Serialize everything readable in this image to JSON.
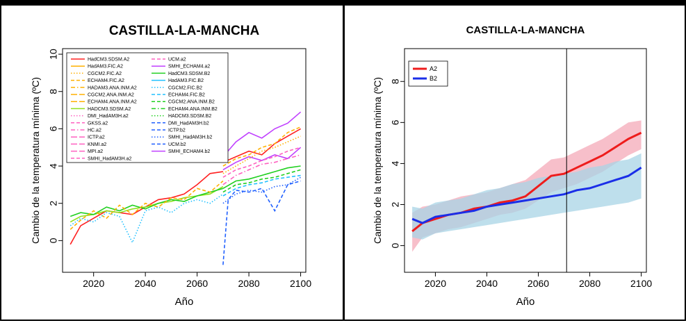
{
  "chart_data": [
    {
      "type": "line",
      "title": "CASTILLA-LA-MANCHA",
      "xlabel": "Año",
      "ylabel": "Cambio de la temperatura mínima (ºC)",
      "xlim": [
        2008,
        2102
      ],
      "ylim": [
        -1.7,
        10.3
      ],
      "xticks": [
        2020,
        2040,
        2060,
        2080,
        2100
      ],
      "yticks": [
        0,
        2,
        4,
        6,
        8,
        10
      ],
      "grid": false,
      "legend_position": "top-left",
      "legend": [
        {
          "label": "HadCM3.SDSM.A2",
          "color": "#ff2020",
          "dash": "solid"
        },
        {
          "label": "HadAM3.FIC.A2",
          "color": "#ffb000",
          "dash": "solid"
        },
        {
          "label": "CGCM2.FIC.A2",
          "color": "#ffb000",
          "dash": "dotted"
        },
        {
          "label": "ECHAM4.FIC.A2",
          "color": "#ffb000",
          "dash": "dashed"
        },
        {
          "label": "HADAM3.ANA.INM.A2",
          "color": "#ffb000",
          "dash": "dashdot"
        },
        {
          "label": "CGCM2.ANA.INM.A2",
          "color": "#ffb000",
          "dash": "longdash"
        },
        {
          "label": "ECHAM4.ANA.INM.A2",
          "color": "#ffb000",
          "dash": "longdash"
        },
        {
          "label": "HADCM3.SDSM.A2",
          "color": "#90e020",
          "dash": "solid"
        },
        {
          "label": "DMI_HadAM3H.a2",
          "color": "#ff60c0",
          "dash": "dotted"
        },
        {
          "label": "GKSS.a2",
          "color": "#ff60c0",
          "dash": "dashed"
        },
        {
          "label": "HC.a2",
          "color": "#ff60c0",
          "dash": "dashdot"
        },
        {
          "label": "ICTP.a2",
          "color": "#ff60c0",
          "dash": "longdash"
        },
        {
          "label": "KNMI.a2",
          "color": "#ff60c0",
          "dash": "longdash"
        },
        {
          "label": "MPI.a2",
          "color": "#ff60c0",
          "dash": "longdash"
        },
        {
          "label": "SMHI_HadAM3H.a2",
          "color": "#ff60c0",
          "dash": "dashed"
        },
        {
          "label": "UCM.a2",
          "color": "#ff60c0",
          "dash": "dashed"
        },
        {
          "label": "SMHI_ECHAM4.a2",
          "color": "#c040ff",
          "dash": "solid"
        },
        {
          "label": "HadCM3.SDSM.B2",
          "color": "#20d020",
          "dash": "solid"
        },
        {
          "label": "HadAM3.FIC.B2",
          "color": "#20c0ff",
          "dash": "solid"
        },
        {
          "label": "CGCM2.FIC.B2",
          "color": "#20c0ff",
          "dash": "dotted"
        },
        {
          "label": "ECHAM4.FIC.B2",
          "color": "#20c0ff",
          "dash": "dashed"
        },
        {
          "label": "CGCM2.ANA.INM.B2",
          "color": "#20d020",
          "dash": "dashed"
        },
        {
          "label": "ECHAM4.ANA.INM.B2",
          "color": "#20d020",
          "dash": "dashdot"
        },
        {
          "label": "HADCM3.SDSM.B2",
          "color": "#20d020",
          "dash": "dotted"
        },
        {
          "label": "DMI_HadAM3H.b2",
          "color": "#2060ff",
          "dash": "dashed"
        },
        {
          "label": "ICTP.b2",
          "color": "#2060ff",
          "dash": "dashed"
        },
        {
          "label": "SMHI_HadAM3H.b2",
          "color": "#2060ff",
          "dash": "dotted"
        },
        {
          "label": "UCM.b2",
          "color": "#2060ff",
          "dash": "dashed"
        },
        {
          "label": "SMHI_ECHAM4.b2",
          "color": "#c040ff",
          "dash": "solid"
        }
      ],
      "series": [
        {
          "color": "#ff2020",
          "dash": "solid",
          "x": [
            2011,
            2015,
            2020,
            2025,
            2030,
            2035,
            2040,
            2045,
            2050,
            2055,
            2060,
            2065,
            2070
          ],
          "y": [
            -0.2,
            0.8,
            1.2,
            1.6,
            1.5,
            1.4,
            1.8,
            2.2,
            2.3,
            2.5,
            3.0,
            3.6,
            3.7
          ]
        },
        {
          "color": "#90e020",
          "dash": "solid",
          "x": [
            2011,
            2015,
            2020,
            2025,
            2030,
            2035,
            2040,
            2045,
            2050,
            2055,
            2060,
            2065,
            2070
          ],
          "y": [
            1.0,
            1.3,
            1.4,
            1.6,
            1.5,
            1.7,
            1.8,
            2.0,
            2.1,
            2.3,
            2.4,
            2.5,
            2.9
          ]
        },
        {
          "color": "#20d020",
          "dash": "solid",
          "x": [
            2011,
            2015,
            2020,
            2025,
            2030,
            2035,
            2040,
            2045,
            2050,
            2055,
            2060,
            2065,
            2070
          ],
          "y": [
            1.3,
            1.5,
            1.4,
            1.8,
            1.6,
            1.9,
            1.7,
            2.0,
            2.2,
            2.1,
            2.4,
            2.6,
            2.8
          ]
        },
        {
          "color": "#ffb000",
          "dash": "dashed",
          "x": [
            2011,
            2015,
            2020,
            2025,
            2030,
            2035,
            2040,
            2045,
            2050,
            2055,
            2060,
            2065,
            2070
          ],
          "y": [
            0.6,
            1.1,
            1.6,
            1.2,
            1.9,
            1.4,
            2.0,
            1.8,
            2.3,
            2.2,
            2.8,
            2.6,
            3.2
          ]
        },
        {
          "color": "#20c0ff",
          "dash": "dotted",
          "x": [
            2011,
            2015,
            2020,
            2025,
            2030,
            2035,
            2040,
            2045,
            2050,
            2055,
            2060,
            2065,
            2070
          ],
          "y": [
            0.8,
            1.2,
            1.0,
            1.5,
            1.3,
            -0.1,
            1.6,
            1.8,
            1.5,
            2.0,
            2.2,
            2.0,
            2.5
          ]
        },
        {
          "color": "#ff2020",
          "dash": "solid",
          "x": [
            2070,
            2075,
            2080,
            2085,
            2090,
            2095,
            2100
          ],
          "y": [
            4.2,
            4.5,
            4.8,
            4.6,
            5.2,
            5.6,
            6.0
          ]
        },
        {
          "color": "#c040ff",
          "dash": "solid",
          "x": [
            2070,
            2075,
            2080,
            2085,
            2090,
            2095,
            2100
          ],
          "y": [
            4.5,
            5.3,
            5.8,
            5.5,
            6.0,
            6.3,
            6.9
          ]
        },
        {
          "color": "#c040ff",
          "dash": "solid",
          "x": [
            2070,
            2075,
            2080,
            2085,
            2090,
            2095,
            2100
          ],
          "y": [
            3.8,
            4.2,
            4.5,
            4.3,
            4.6,
            4.4,
            5.0
          ]
        },
        {
          "color": "#ffb000",
          "dash": "dashed",
          "x": [
            2070,
            2075,
            2080,
            2085,
            2090,
            2095,
            2100
          ],
          "y": [
            4.0,
            4.4,
            4.6,
            5.0,
            5.2,
            5.8,
            6.1
          ]
        },
        {
          "color": "#ffb000",
          "dash": "dotted",
          "x": [
            2070,
            2075,
            2080,
            2085,
            2090,
            2095,
            2100
          ],
          "y": [
            3.6,
            4.0,
            4.4,
            4.8,
            5.0,
            5.3,
            5.6
          ]
        },
        {
          "color": "#ff60c0",
          "dash": "dashed",
          "x": [
            2070,
            2075,
            2080,
            2085,
            2090,
            2095,
            2100
          ],
          "y": [
            3.4,
            3.8,
            4.0,
            4.3,
            4.5,
            4.8,
            5.0
          ]
        },
        {
          "color": "#ff60c0",
          "dash": "dashdot",
          "x": [
            2070,
            2075,
            2080,
            2085,
            2090,
            2095,
            2100
          ],
          "y": [
            3.0,
            3.5,
            3.8,
            4.1,
            4.2,
            4.4,
            4.6
          ]
        },
        {
          "color": "#20d020",
          "dash": "solid",
          "x": [
            2070,
            2075,
            2080,
            2085,
            2090,
            2095,
            2100
          ],
          "y": [
            2.8,
            3.2,
            3.3,
            3.5,
            3.7,
            3.9,
            4.0
          ]
        },
        {
          "color": "#20d020",
          "dash": "dashed",
          "x": [
            2070,
            2075,
            2080,
            2085,
            2090,
            2095,
            2100
          ],
          "y": [
            2.6,
            3.0,
            3.1,
            3.3,
            3.4,
            3.6,
            3.8
          ]
        },
        {
          "color": "#20c0ff",
          "dash": "dashed",
          "x": [
            2070,
            2075,
            2080,
            2085,
            2090,
            2095,
            2100
          ],
          "y": [
            2.4,
            2.8,
            3.0,
            3.1,
            3.3,
            3.4,
            3.5
          ]
        },
        {
          "color": "#2060ff",
          "dash": "dashed",
          "x": [
            2070,
            2072,
            2075,
            2080,
            2085,
            2090,
            2095,
            2100
          ],
          "y": [
            -1.3,
            2.2,
            2.7,
            2.6,
            2.8,
            1.6,
            3.0,
            3.2
          ]
        },
        {
          "color": "#2060ff",
          "dash": "dotted",
          "x": [
            2070,
            2075,
            2080,
            2085,
            2090,
            2095,
            2100
          ],
          "y": [
            2.0,
            2.5,
            2.7,
            2.6,
            2.9,
            3.0,
            3.4
          ]
        }
      ]
    },
    {
      "type": "line",
      "title": "CASTILLA-LA-MANCHA",
      "xlabel": "Año",
      "ylabel": "Cambio de la temperatura mínima (ºC)",
      "xlim": [
        2008,
        2102
      ],
      "ylim": [
        -1.3,
        9.6
      ],
      "xticks": [
        2020,
        2040,
        2060,
        2080,
        2100
      ],
      "yticks": [
        0,
        2,
        4,
        6,
        8
      ],
      "grid": false,
      "legend_position": "top-left",
      "vline_x": 2071,
      "series": [
        {
          "name": "A2",
          "color": "#ee1c1c",
          "band_color": "#f4aab8",
          "x": [
            2011,
            2015,
            2020,
            2025,
            2030,
            2035,
            2040,
            2045,
            2050,
            2055,
            2060,
            2065,
            2070,
            2075,
            2080,
            2085,
            2090,
            2095,
            2100
          ],
          "y": [
            0.7,
            1.1,
            1.3,
            1.5,
            1.6,
            1.8,
            1.9,
            2.1,
            2.2,
            2.4,
            2.9,
            3.4,
            3.5,
            3.8,
            4.1,
            4.4,
            4.8,
            5.2,
            5.5
          ],
          "low": [
            -0.3,
            0.4,
            0.6,
            0.8,
            0.9,
            1.1,
            1.3,
            1.5,
            1.6,
            1.8,
            2.2,
            2.6,
            2.8,
            3.0,
            3.3,
            3.6,
            4.0,
            4.4,
            4.7
          ],
          "high": [
            1.6,
            1.9,
            2.0,
            2.2,
            2.4,
            2.5,
            2.6,
            2.8,
            3.0,
            3.2,
            3.7,
            4.2,
            4.3,
            4.6,
            4.9,
            5.2,
            5.6,
            6.0,
            6.1
          ]
        },
        {
          "name": "B2",
          "color": "#1a2ee8",
          "band_color": "#a8d4e6",
          "x": [
            2011,
            2015,
            2020,
            2025,
            2030,
            2035,
            2040,
            2045,
            2050,
            2055,
            2060,
            2065,
            2070,
            2075,
            2080,
            2085,
            2090,
            2095,
            2100
          ],
          "y": [
            1.3,
            1.1,
            1.4,
            1.5,
            1.6,
            1.7,
            1.9,
            2.0,
            2.1,
            2.2,
            2.3,
            2.4,
            2.5,
            2.7,
            2.8,
            3.0,
            3.2,
            3.4,
            3.8
          ],
          "low": [
            0.4,
            0.3,
            0.6,
            0.7,
            0.8,
            0.9,
            1.0,
            1.1,
            1.2,
            1.3,
            1.4,
            1.5,
            1.6,
            1.7,
            1.8,
            1.9,
            2.0,
            2.1,
            2.3
          ],
          "high": [
            1.9,
            1.8,
            2.1,
            2.2,
            2.3,
            2.5,
            2.7,
            2.8,
            3.0,
            3.1,
            3.3,
            3.4,
            3.5,
            3.6,
            3.8,
            3.9,
            4.1,
            4.2,
            4.5
          ]
        }
      ]
    }
  ]
}
